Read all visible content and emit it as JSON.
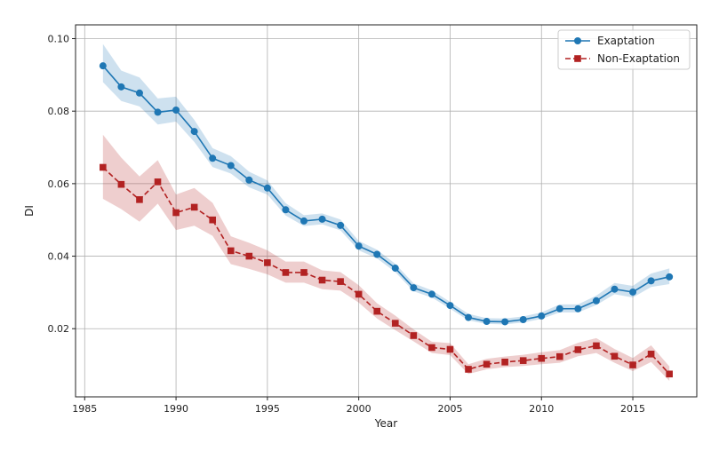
{
  "chart_data": {
    "type": "line",
    "xlabel": "Year",
    "ylabel": "DI",
    "xlim": [
      1984.5,
      2018.5
    ],
    "ylim": [
      0.0012,
      0.1038
    ],
    "grid": true,
    "legend_position": "top-right",
    "x_ticks": [
      1985,
      1990,
      1995,
      2000,
      2005,
      2010,
      2015
    ],
    "x_tick_labels": [
      "1985",
      "1990",
      "1995",
      "2000",
      "2005",
      "2010",
      "2015"
    ],
    "y_ticks": [
      0.02,
      0.04,
      0.06,
      0.08,
      0.1
    ],
    "y_tick_labels": [
      "0.02",
      "0.04",
      "0.06",
      "0.08",
      "0.10"
    ],
    "x": [
      1986,
      1987,
      1988,
      1989,
      1990,
      1991,
      1992,
      1993,
      1994,
      1995,
      1996,
      1997,
      1998,
      1999,
      2000,
      2001,
      2002,
      2003,
      2004,
      2005,
      2006,
      2007,
      2008,
      2009,
      2010,
      2011,
      2012,
      2013,
      2014,
      2015,
      2016,
      2017
    ],
    "series": [
      {
        "name": "Exaptation",
        "color": "#1f77b4",
        "marker": "circle",
        "line_style": "solid",
        "values": [
          0.0925,
          0.0867,
          0.085,
          0.0797,
          0.0803,
          0.0744,
          0.067,
          0.065,
          0.061,
          0.0588,
          0.0528,
          0.0497,
          0.0502,
          0.0485,
          0.0428,
          0.0405,
          0.0367,
          0.0313,
          0.0295,
          0.0264,
          0.0231,
          0.022,
          0.0219,
          0.0225,
          0.0235,
          0.0255,
          0.0255,
          0.0277,
          0.0309,
          0.0301,
          0.0332,
          0.0343
        ],
        "lower": [
          0.088,
          0.0828,
          0.0813,
          0.0763,
          0.0771,
          0.0715,
          0.0646,
          0.0628,
          0.059,
          0.057,
          0.0512,
          0.0483,
          0.0488,
          0.0471,
          0.0416,
          0.0394,
          0.0356,
          0.0303,
          0.0286,
          0.0255,
          0.0223,
          0.0213,
          0.0212,
          0.0217,
          0.0227,
          0.0245,
          0.0245,
          0.0265,
          0.0295,
          0.0286,
          0.0315,
          0.0323
        ],
        "upper": [
          0.0985,
          0.0912,
          0.0893,
          0.0835,
          0.084,
          0.0776,
          0.0698,
          0.0676,
          0.0633,
          0.0609,
          0.0546,
          0.0513,
          0.0518,
          0.0501,
          0.0442,
          0.0418,
          0.0379,
          0.0325,
          0.0306,
          0.0274,
          0.0241,
          0.0229,
          0.0228,
          0.0234,
          0.0245,
          0.0267,
          0.0267,
          0.0291,
          0.0326,
          0.0318,
          0.0352,
          0.0366
        ]
      },
      {
        "name": "Non-Exaptation",
        "color": "#b22222",
        "marker": "square",
        "line_style": "dashed",
        "values": [
          0.0645,
          0.0598,
          0.0556,
          0.0605,
          0.052,
          0.0535,
          0.05,
          0.0415,
          0.04,
          0.0382,
          0.0355,
          0.0355,
          0.0334,
          0.033,
          0.0295,
          0.0248,
          0.0215,
          0.0181,
          0.0148,
          0.0143,
          0.0088,
          0.0102,
          0.0108,
          0.0112,
          0.0118,
          0.0123,
          0.0142,
          0.0153,
          0.0124,
          0.01,
          0.013,
          0.0075
        ],
        "lower": [
          0.0558,
          0.053,
          0.0495,
          0.0545,
          0.0472,
          0.0484,
          0.0456,
          0.0378,
          0.0365,
          0.035,
          0.0327,
          0.0327,
          0.0309,
          0.0305,
          0.0272,
          0.0228,
          0.0196,
          0.0165,
          0.0133,
          0.0127,
          0.0075,
          0.0088,
          0.0094,
          0.0097,
          0.0102,
          0.0106,
          0.0124,
          0.0133,
          0.0106,
          0.0083,
          0.0108,
          0.0056
        ],
        "upper": [
          0.0735,
          0.0672,
          0.062,
          0.0665,
          0.057,
          0.0588,
          0.0547,
          0.0455,
          0.0437,
          0.0416,
          0.0385,
          0.0385,
          0.0361,
          0.0356,
          0.032,
          0.027,
          0.0236,
          0.0198,
          0.0164,
          0.016,
          0.0102,
          0.0117,
          0.0123,
          0.0128,
          0.0135,
          0.0141,
          0.0161,
          0.0174,
          0.0144,
          0.0119,
          0.0154,
          0.0096
        ]
      }
    ]
  }
}
